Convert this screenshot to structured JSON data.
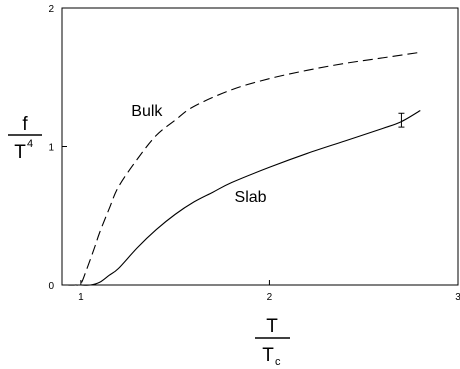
{
  "chart_data": {
    "type": "line",
    "title": "",
    "xlabel": {
      "main": "T",
      "sub_base": "T",
      "sub": "c"
    },
    "ylabel": {
      "main": "f",
      "sub_base": "T",
      "sup": "4"
    },
    "xlim": [
      0.9,
      3.0
    ],
    "ylim": [
      0,
      2
    ],
    "x_ticks": [
      {
        "value": 1,
        "label": "1"
      },
      {
        "value": 2,
        "label": "2"
      },
      {
        "value": 3,
        "label": "3"
      }
    ],
    "y_ticks": [
      {
        "value": 0,
        "label": "0"
      },
      {
        "value": 1,
        "label": "1"
      },
      {
        "value": 2,
        "label": "2"
      }
    ],
    "grid": false,
    "series": [
      {
        "name": "Bulk",
        "style": "dashed",
        "x": [
          0.93,
          0.97,
          1.0,
          1.03,
          1.07,
          1.1,
          1.15,
          1.2,
          1.3,
          1.4,
          1.5,
          1.6,
          1.8,
          2.0,
          2.2,
          2.4,
          2.6,
          2.8
        ],
        "y": [
          0.0,
          0.0,
          0.01,
          0.11,
          0.26,
          0.38,
          0.55,
          0.71,
          0.91,
          1.08,
          1.19,
          1.29,
          1.41,
          1.49,
          1.55,
          1.6,
          1.64,
          1.68
        ]
      },
      {
        "name": "Slab",
        "style": "solid",
        "x": [
          1.0,
          1.05,
          1.1,
          1.15,
          1.2,
          1.3,
          1.4,
          1.5,
          1.6,
          1.7,
          1.8,
          2.0,
          2.2,
          2.4,
          2.6,
          2.7,
          2.8
        ],
        "y": [
          0.0,
          0.0,
          0.02,
          0.07,
          0.12,
          0.27,
          0.4,
          0.51,
          0.6,
          0.67,
          0.74,
          0.85,
          0.95,
          1.04,
          1.13,
          1.18,
          1.26
        ]
      }
    ],
    "annotations": [
      {
        "text": "Bulk",
        "x": 1.35,
        "y": 1.22
      },
      {
        "text": "Slab",
        "x": 1.9,
        "y": 0.6
      }
    ],
    "error_bars": [
      {
        "x": 2.7,
        "y": 1.19,
        "err": 0.05
      }
    ]
  }
}
